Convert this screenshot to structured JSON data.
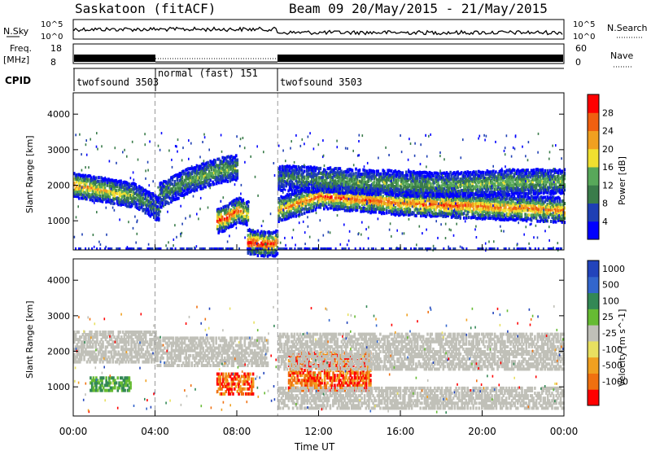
{
  "header": {
    "station": "Saskatoon (fitACF)",
    "beam_range": "Beam 09  20/May/2015 - 21/May/2015"
  },
  "aux_panels": {
    "nsky_label": "N.Sky",
    "nsky_ticks": [
      "10^5",
      "10^0"
    ],
    "nsearch_label": "N.Search",
    "freq_label_1": "Freq.",
    "freq_label_2": "[MHz]",
    "freq_ticks": [
      "18",
      "8"
    ],
    "nave_ticks": [
      "60",
      "0"
    ],
    "nave_label": "Nave",
    "cpid_label": "CPID",
    "cpid_segments": [
      "twofsound 3503",
      "normal (fast) 151",
      "twofsound 3503"
    ]
  },
  "colors": {
    "power_scale": [
      "#0000ff",
      "#1e3fb4",
      "#3a7c4a",
      "#58a85a",
      "#f0e030",
      "#f0a020",
      "#f06010",
      "#ff0000"
    ],
    "velocity_scale": [
      "#2244bb",
      "#3366cc",
      "#338855",
      "#66bb33",
      "#c0c0b8",
      "#e8e060",
      "#f0a020",
      "#f07010",
      "#ff0000"
    ],
    "ground_scatter": "#c0c0b8"
  },
  "chart_data": [
    {
      "type": "heatmap",
      "name": "power",
      "xlabel": "Time UT",
      "ylabel": "Slant Range [km]",
      "x_ticks": [
        "00:00",
        "04:00",
        "08:00",
        "12:00",
        "16:00",
        "20:00",
        "00:00"
      ],
      "x_range_hours": [
        0,
        24
      ],
      "y_ticks": [
        1000,
        2000,
        3000,
        4000
      ],
      "ylim": [
        180,
        4600
      ],
      "colorbar_label": "Power [dB]",
      "colorbar_ticks": [
        "4",
        "8",
        "12",
        "16",
        "20",
        "24",
        "28"
      ],
      "dashed_lines_hours": [
        4,
        10
      ],
      "bands": [
        {
          "t": [
            0.0,
            2.0,
            3.0,
            4.2
          ],
          "range": [
            2000,
            1800,
            1700,
            1300
          ],
          "intensity": [
            0.8,
            0.6,
            0.4,
            0.2
          ]
        },
        {
          "t": [
            4.2,
            5.5,
            7.0,
            8.0
          ],
          "range": [
            1700,
            2100,
            2400,
            2500
          ],
          "intensity": [
            0.3,
            0.4,
            0.5,
            0.4
          ]
        },
        {
          "t": [
            7.0,
            7.5,
            8.0,
            8.5
          ],
          "range": [
            1000,
            1100,
            1300,
            1200
          ],
          "intensity": [
            0.9,
            1.0,
            0.9,
            0.6
          ]
        },
        {
          "t": [
            8.5,
            9.2,
            9.8,
            10.0
          ],
          "range": [
            400,
            350,
            350,
            400
          ],
          "intensity": [
            1.0,
            1.0,
            1.0,
            0.8
          ]
        },
        {
          "t": [
            10.0,
            12.0,
            14.0,
            16.0,
            18.0,
            20.0,
            22.0,
            24.0
          ],
          "range": [
            1300,
            1700,
            1600,
            1500,
            1450,
            1400,
            1350,
            1300
          ],
          "intensity": [
            0.7,
            0.9,
            0.9,
            0.8,
            0.9,
            0.8,
            0.8,
            0.8
          ]
        },
        {
          "t": [
            10.0,
            14.0,
            18.0,
            22.0,
            24.0
          ],
          "range": [
            2200,
            2100,
            2000,
            2100,
            2100
          ],
          "intensity": [
            0.3,
            0.4,
            0.4,
            0.5,
            0.5
          ]
        }
      ]
    },
    {
      "type": "heatmap",
      "name": "velocity",
      "xlabel": "Time UT",
      "ylabel": "Slant Range [km]",
      "x_ticks": [
        "00:00",
        "04:00",
        "08:00",
        "12:00",
        "16:00",
        "20:00",
        "00:00"
      ],
      "x_range_hours": [
        0,
        24
      ],
      "y_ticks": [
        1000,
        2000,
        3000,
        4000
      ],
      "ylim": [
        180,
        4600
      ],
      "colorbar_label": "Velocity [m s^-1]",
      "colorbar_ticks": [
        "1000",
        "500",
        "100",
        "25",
        "-25",
        "-100",
        "-500",
        "-1000"
      ],
      "dashed_lines_hours": [
        4,
        10
      ],
      "regions": [
        {
          "t": [
            0.0,
            4.0
          ],
          "range": [
            1700,
            2600
          ],
          "kind": "ground"
        },
        {
          "t": [
            0.8,
            2.8
          ],
          "range": [
            900,
            1300
          ],
          "kind": "positive"
        },
        {
          "t": [
            4.0,
            9.5
          ],
          "range": [
            1600,
            2400
          ],
          "kind": "ground"
        },
        {
          "t": [
            7.0,
            8.8
          ],
          "range": [
            800,
            1400
          ],
          "kind": "negative"
        },
        {
          "t": [
            10.5,
            14.5
          ],
          "range": [
            900,
            2000
          ],
          "kind": "negative"
        },
        {
          "t": [
            10.0,
            24.0
          ],
          "range": [
            1500,
            2500
          ],
          "kind": "ground"
        },
        {
          "t": [
            10.0,
            24.0
          ],
          "range": [
            400,
            1000
          ],
          "kind": "ground"
        }
      ]
    }
  ]
}
